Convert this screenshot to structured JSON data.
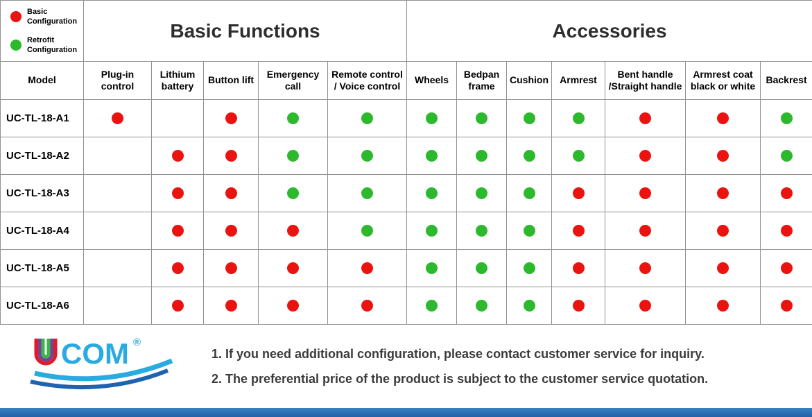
{
  "colors": {
    "red": "#ea1310",
    "green": "#2db92d",
    "border": "#919191",
    "logo_blue": "#29abe2",
    "bar_blue": "#2f6eb6"
  },
  "legend": {
    "items": [
      {
        "color": "red",
        "label": "Basic Configuration"
      },
      {
        "color": "green",
        "label": "Retrofit Configuration"
      }
    ]
  },
  "table": {
    "model_header": "Model",
    "groups": [
      {
        "label": "Basic Functions",
        "span": 5
      },
      {
        "label": "Accessories",
        "span": 7
      }
    ],
    "columns": [
      "Plug-in control",
      "Lithium battery",
      "Button lift",
      "Emergency call",
      "Remote control / Voice control",
      "Wheels",
      "Bedpan frame",
      "Cushion",
      "Armrest",
      "Bent handle /Straight handle",
      "Armrest coat black or white",
      "Backrest"
    ],
    "rows": [
      {
        "model": "UC-TL-18-A1",
        "cells": [
          "red",
          "",
          "red",
          "green",
          "green",
          "green",
          "green",
          "green",
          "green",
          "red",
          "red",
          "green"
        ]
      },
      {
        "model": "UC-TL-18-A2",
        "cells": [
          "",
          "red",
          "red",
          "green",
          "green",
          "green",
          "green",
          "green",
          "green",
          "red",
          "red",
          "green"
        ]
      },
      {
        "model": "UC-TL-18-A3",
        "cells": [
          "",
          "red",
          "red",
          "green",
          "green",
          "green",
          "green",
          "green",
          "red",
          "red",
          "red",
          "red"
        ]
      },
      {
        "model": "UC-TL-18-A4",
        "cells": [
          "",
          "red",
          "red",
          "red",
          "green",
          "green",
          "green",
          "green",
          "red",
          "red",
          "red",
          "red"
        ]
      },
      {
        "model": "UC-TL-18-A5",
        "cells": [
          "",
          "red",
          "red",
          "red",
          "red",
          "green",
          "green",
          "green",
          "red",
          "red",
          "red",
          "red"
        ]
      },
      {
        "model": "UC-TL-18-A6",
        "cells": [
          "",
          "red",
          "red",
          "red",
          "red",
          "green",
          "green",
          "green",
          "red",
          "red",
          "red",
          "red"
        ]
      }
    ]
  },
  "footer": {
    "logo": {
      "u": "U",
      "rest": "COM",
      "reg": "®"
    },
    "notes": [
      "1. If you need additional configuration, please contact customer service for inquiry.",
      "2. The preferential price of the product is subject to the customer service quotation."
    ]
  }
}
